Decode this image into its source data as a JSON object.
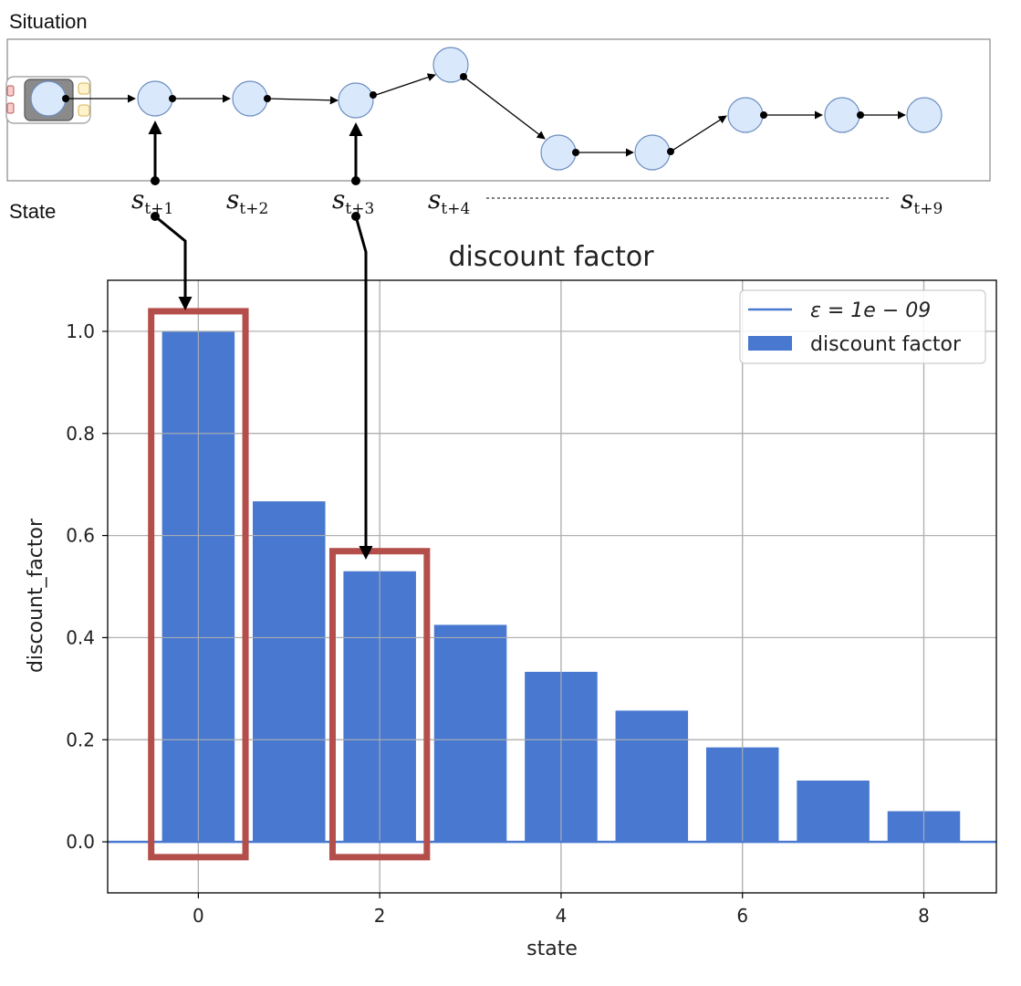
{
  "diagram": {
    "situation_label": "Situation",
    "state_label": "State",
    "state_labels": [
      {
        "base": "s",
        "sub": "t+1"
      },
      {
        "base": "s",
        "sub": "t+2"
      },
      {
        "base": "s",
        "sub": "t+3"
      },
      {
        "base": "s",
        "sub": "t+4"
      },
      {
        "base": "s",
        "sub": "t+9"
      }
    ]
  },
  "colors": {
    "bar": "#4878cf",
    "highlight_box": "#b44e4a",
    "node_fill": "#dae8fc",
    "node_stroke": "#6c8ebf",
    "grid": "#b0b0b0"
  },
  "chart_data": {
    "type": "bar",
    "title": "discount factor",
    "xlabel": "state",
    "ylabel": "discount_factor",
    "x": [
      0,
      1,
      2,
      3,
      4,
      5,
      6,
      7,
      8
    ],
    "values": [
      1.0,
      0.667,
      0.53,
      0.425,
      0.333,
      0.257,
      0.185,
      0.12,
      0.06
    ],
    "xlim": [
      -1,
      8.8
    ],
    "ylim": [
      -0.1,
      1.1
    ],
    "xticks": [
      0,
      2,
      4,
      6,
      8
    ],
    "yticks": [
      0.0,
      0.2,
      0.4,
      0.6,
      0.8,
      1.0
    ],
    "ytick_labels": [
      "0.0",
      "0.2",
      "0.4",
      "0.6",
      "0.8",
      "1.0"
    ],
    "grid": true,
    "legend_position": "top-right",
    "series": [
      {
        "name": "ε = 1e − 09",
        "kind": "line",
        "value": 0.0
      },
      {
        "name": "discount factor",
        "kind": "bar"
      }
    ],
    "highlighted_states": [
      0,
      2
    ]
  }
}
